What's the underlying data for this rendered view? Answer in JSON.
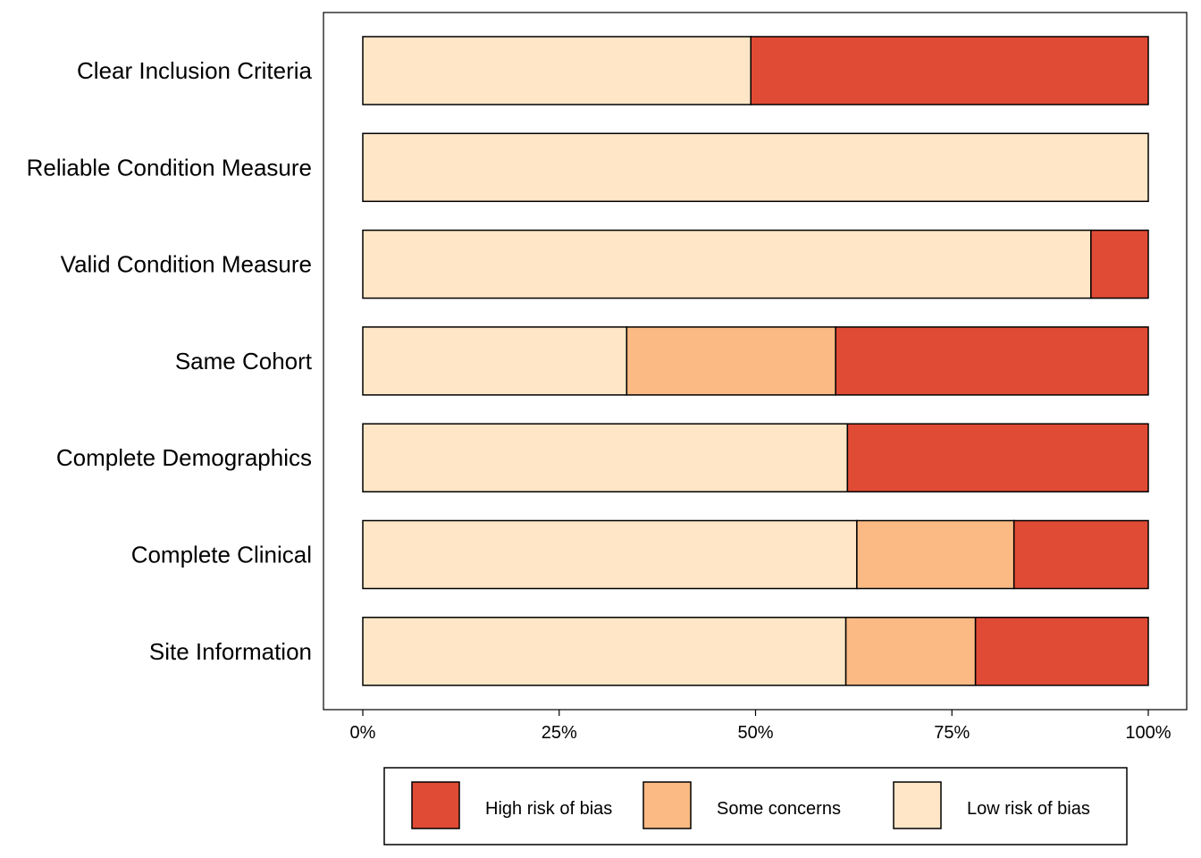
{
  "chart_data": {
    "type": "bar",
    "orientation": "horizontal",
    "stacked": true,
    "categories": [
      "Clear Inclusion Criteria",
      "Reliable Condition Measure",
      "Valid Condition Measure",
      "Same Cohort",
      "Complete Demographics",
      "Complete Clinical",
      "Site Information"
    ],
    "series": [
      {
        "name": "Low risk of bias",
        "color": "#FEE6C6",
        "values": [
          49.4,
          100,
          92.7,
          33.6,
          61.7,
          62.9,
          61.5
        ]
      },
      {
        "name": "Some concerns",
        "color": "#FBBA84",
        "values": [
          0,
          0,
          0,
          26.6,
          0,
          20.0,
          16.5
        ]
      },
      {
        "name": "High risk of bias",
        "color": "#E04B35",
        "values": [
          50.6,
          0,
          7.3,
          39.8,
          38.3,
          17.1,
          22.0
        ]
      }
    ],
    "legend_order": [
      "High risk of bias",
      "Some concerns",
      "Low risk of bias"
    ],
    "xlim": [
      0,
      100
    ],
    "x_ticks": [
      "0%",
      "25%",
      "50%",
      "75%",
      "100%"
    ],
    "xlabel": "",
    "ylabel": "",
    "title": "",
    "grid": false,
    "legend_position": "bottom"
  }
}
